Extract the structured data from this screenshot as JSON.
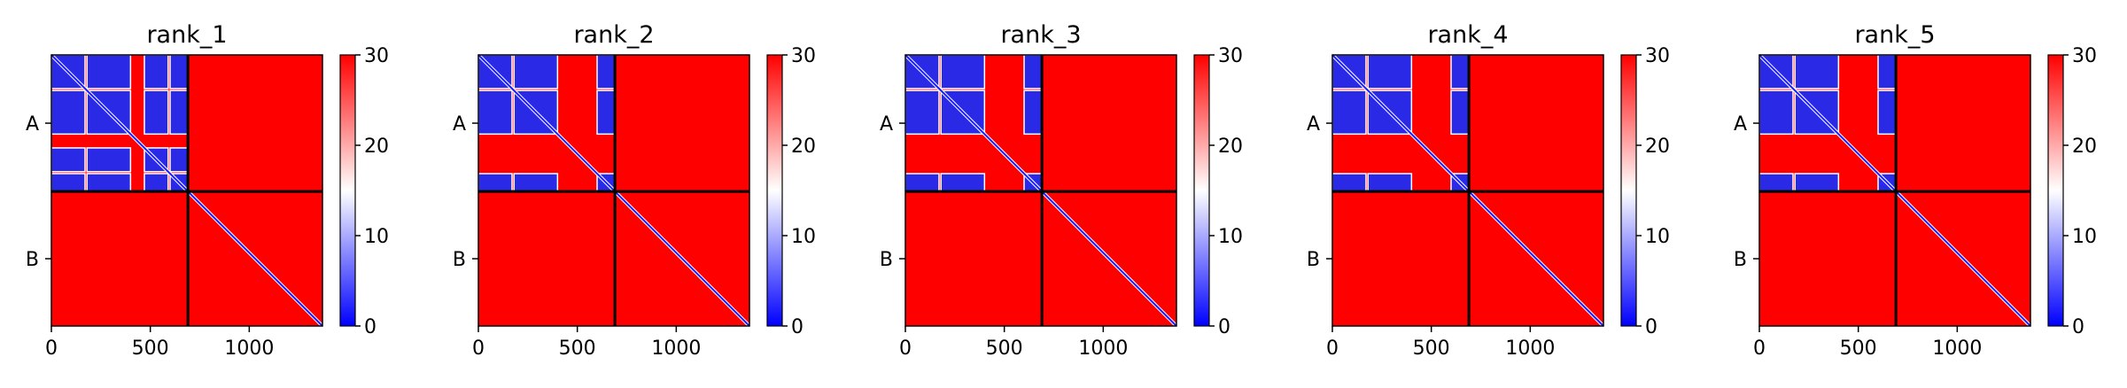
{
  "chart_data": [
    {
      "type": "heatmap",
      "title": "rank_1",
      "xlabel": "",
      "ylabel": "",
      "x_range": [
        0,
        1370
      ],
      "x_ticks": [
        0,
        500,
        1000
      ],
      "chain_boundary": 690,
      "y_tick_labels": [
        "A",
        "B"
      ],
      "colorbar": {
        "range": [
          0,
          30
        ],
        "ticks": [
          0,
          10,
          20,
          30
        ],
        "colormap": "bwr"
      },
      "low_error_regions": [
        [
          0,
          170
        ],
        [
          180,
          400
        ],
        [
          470,
          590
        ],
        [
          600,
          690
        ]
      ]
    },
    {
      "type": "heatmap",
      "title": "rank_2",
      "xlabel": "",
      "ylabel": "",
      "x_range": [
        0,
        1370
      ],
      "x_ticks": [
        0,
        500,
        1000
      ],
      "chain_boundary": 690,
      "y_tick_labels": [
        "A",
        "B"
      ],
      "colorbar": {
        "range": [
          0,
          30
        ],
        "ticks": [
          0,
          10,
          20,
          30
        ],
        "colormap": "bwr"
      },
      "low_error_regions": [
        [
          0,
          170
        ],
        [
          180,
          400
        ],
        [
          600,
          690
        ]
      ]
    },
    {
      "type": "heatmap",
      "title": "rank_3",
      "xlabel": "",
      "ylabel": "",
      "x_range": [
        0,
        1370
      ],
      "x_ticks": [
        0,
        500,
        1000
      ],
      "chain_boundary": 690,
      "y_tick_labels": [
        "A",
        "B"
      ],
      "colorbar": {
        "range": [
          0,
          30
        ],
        "ticks": [
          0,
          10,
          20,
          30
        ],
        "colormap": "bwr"
      },
      "low_error_regions": [
        [
          0,
          170
        ],
        [
          180,
          400
        ],
        [
          600,
          690
        ]
      ]
    },
    {
      "type": "heatmap",
      "title": "rank_4",
      "xlabel": "",
      "ylabel": "",
      "x_range": [
        0,
        1370
      ],
      "x_ticks": [
        0,
        500,
        1000
      ],
      "chain_boundary": 690,
      "y_tick_labels": [
        "A",
        "B"
      ],
      "colorbar": {
        "range": [
          0,
          30
        ],
        "ticks": [
          0,
          10,
          20,
          30
        ],
        "colormap": "bwr"
      },
      "low_error_regions": [
        [
          0,
          170
        ],
        [
          180,
          400
        ],
        [
          600,
          690
        ]
      ]
    },
    {
      "type": "heatmap",
      "title": "rank_5",
      "xlabel": "",
      "ylabel": "",
      "x_range": [
        0,
        1370
      ],
      "x_ticks": [
        0,
        500,
        1000
      ],
      "chain_boundary": 690,
      "y_tick_labels": [
        "A",
        "B"
      ],
      "colorbar": {
        "range": [
          0,
          30
        ],
        "ticks": [
          0,
          10,
          20,
          30
        ],
        "colormap": "bwr"
      },
      "low_error_regions": [
        [
          0,
          170
        ],
        [
          180,
          400
        ],
        [
          600,
          690
        ]
      ]
    }
  ],
  "colors": {
    "high": "#ff0000",
    "mid": "#ffffff",
    "low": "#0000ff",
    "axis": "#000000"
  }
}
